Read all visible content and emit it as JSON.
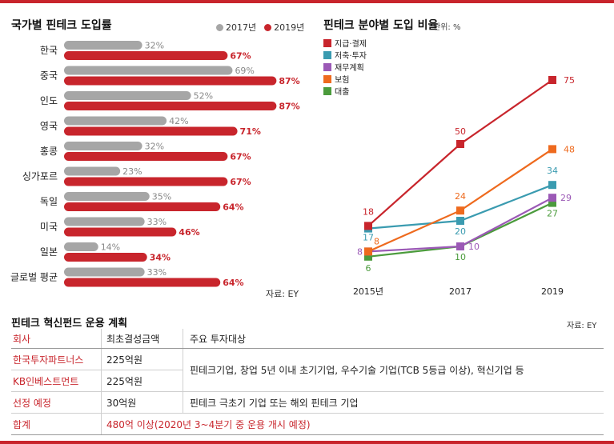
{
  "left_chart": {
    "title": "국가별 핀테크 도입률",
    "legend": [
      {
        "label": "2017년",
        "color": "#a6a6a6"
      },
      {
        "label": "2019년",
        "color": "#c8252c"
      }
    ],
    "source": "자료: EY"
  },
  "right_chart": {
    "title": "핀테크 분야별 도입 비율",
    "unit": "단위: %"
  },
  "table": {
    "title": "핀테크 혁신펀드 운용 계획",
    "source": "자료: EY",
    "headers": [
      "회사",
      "최초결성금액",
      "주요 투자대상"
    ],
    "rows": [
      {
        "company": "한국투자파트너스",
        "amount": "225억원"
      },
      {
        "company": "KB인베스트먼트",
        "amount": "225억원"
      },
      {
        "company": "선정 예정",
        "amount": "30억원",
        "target": "핀테크 극초기 기업 또는 해외 핀테크 기업"
      }
    ],
    "merged_target": "핀테크기업, 창업 5년 이내 초기기업, 우수기술 기업(TCB 5등급 이상), 혁신기업 등",
    "total": {
      "label": "합계",
      "value": "480억 이상(2020년 3~4분기 중 운용 개시 예정)"
    }
  },
  "chart_data": [
    {
      "type": "bar",
      "orientation": "horizontal",
      "title": "국가별 핀테크 도입률",
      "categories": [
        "한국",
        "중국",
        "인도",
        "영국",
        "홍콩",
        "싱가포르",
        "독일",
        "미국",
        "일본",
        "글로벌 평균"
      ],
      "series": [
        {
          "name": "2017년",
          "color": "#a6a6a6",
          "values": [
            32,
            69,
            52,
            42,
            32,
            23,
            35,
            33,
            14,
            33
          ],
          "labels": [
            "32%",
            "69%",
            "52%",
            "42%",
            "32%",
            "23%",
            "35%",
            "33%",
            "14%",
            "33%"
          ]
        },
        {
          "name": "2019년",
          "color": "#c8252c",
          "values": [
            67,
            87,
            87,
            71,
            67,
            67,
            64,
            46,
            34,
            64
          ],
          "labels": [
            "67%",
            "87%",
            "87%",
            "71%",
            "67%",
            "67%",
            "64%",
            "46%",
            "34%",
            "64%"
          ]
        }
      ],
      "xlim": [
        0,
        100
      ]
    },
    {
      "type": "line",
      "title": "핀테크 분야별 도입 비율",
      "x": [
        "2015년",
        "2017",
        "2019"
      ],
      "ylim": [
        0,
        80
      ],
      "series": [
        {
          "name": "지급·결제",
          "color": "#c8252c",
          "values": [
            18,
            50,
            75
          ]
        },
        {
          "name": "저축·투자",
          "color": "#3a9bb0",
          "values": [
            17,
            20,
            34
          ]
        },
        {
          "name": "재무계획",
          "color": "#9b59b6",
          "values": [
            8,
            10,
            29
          ]
        },
        {
          "name": "보험",
          "color": "#ee6a1e",
          "values": [
            8,
            24,
            48
          ]
        },
        {
          "name": "대출",
          "color": "#4b9b3c",
          "values": [
            6,
            10,
            27
          ]
        }
      ]
    }
  ]
}
